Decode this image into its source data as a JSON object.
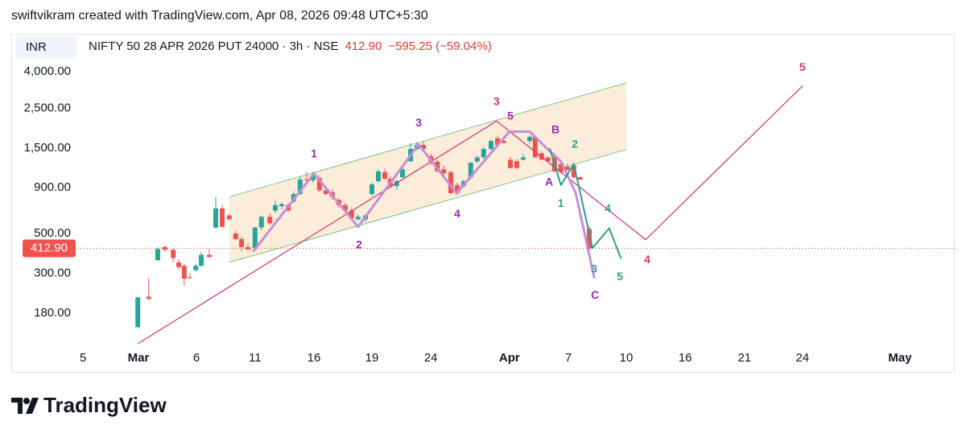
{
  "credit": "swiftvikram created with TradingView.com, Apr 08, 2026 09:48 UTC+5:30",
  "brand": "TradingView",
  "chart_data": {
    "type": "candlestick",
    "currency": "INR",
    "title": "NIFTY 50 28 APR 2026 PUT 24000 · 3h · NSE",
    "last_price": {
      "value": 412.9,
      "label": "412.90"
    },
    "change": "−595.25 (−59.04%)",
    "log_scale": true,
    "up_color": "#26a69a",
    "down_color": "#ef5350",
    "ylim": [
      120,
      6500
    ],
    "yticks": [
      {
        "value": 4000,
        "label": "4,000.00"
      },
      {
        "value": 2500,
        "label": "2,500.00"
      },
      {
        "value": 1500,
        "label": "1,500.00"
      },
      {
        "value": 900,
        "label": "900.00"
      },
      {
        "value": 500,
        "label": "500.00"
      },
      {
        "value": 300,
        "label": "300.00"
      },
      {
        "value": 180,
        "label": "180.00"
      }
    ],
    "xlim": [
      -9.5,
      126.75
    ],
    "xticks": [
      {
        "value": -8.6,
        "label": "5"
      },
      {
        "value": 0,
        "label": "Mar"
      },
      {
        "value": 9,
        "label": "6"
      },
      {
        "value": 18.1,
        "label": "11"
      },
      {
        "value": 27.25,
        "label": "16"
      },
      {
        "value": 36.25,
        "label": "19"
      },
      {
        "value": 45.4,
        "label": "24"
      },
      {
        "value": 57.6,
        "label": "Apr"
      },
      {
        "value": 66.75,
        "label": "7"
      },
      {
        "value": 75.75,
        "label": "10"
      },
      {
        "value": 84.9,
        "label": "16"
      },
      {
        "value": 94.1,
        "label": "21"
      },
      {
        "value": 103.1,
        "label": "24"
      },
      {
        "value": 118.25,
        "label": "May"
      }
    ],
    "candles": {
      "x": [
        -0.1,
        1.6,
        3,
        4.1,
        5.4,
        6.25,
        7.1,
        8,
        8.9,
        9.75,
        11,
        12,
        13,
        14.1,
        15.1,
        16,
        17,
        18.1,
        19.1,
        20.4,
        21.25,
        22.25,
        23.25,
        24.1,
        25.1,
        26.1,
        27.1,
        28.1,
        29.1,
        30.1,
        31.1,
        32.1,
        33.1,
        34.1,
        35.25,
        36.25,
        37.25,
        38.25,
        39.1,
        40.1,
        41,
        42.25,
        43.25,
        44.25,
        45.4,
        46.4,
        47.4,
        48.5,
        49.5,
        50.5,
        51.6,
        52.6,
        53.6,
        54.75,
        55.75,
        56.75,
        57.75,
        58.75,
        59.75,
        60.75,
        61.6,
        62.6,
        63.6,
        64.6,
        65.6,
        66.6,
        67.6,
        68.6,
        70
      ],
      "open": [
        150,
        222,
        355,
        420,
        405,
        345,
        330,
        285,
        312,
        330,
        380,
        540,
        690,
        630,
        500,
        465,
        420,
        415,
        540,
        620,
        670,
        710,
        720,
        755,
        830,
        1000,
        990,
        1020,
        870,
        850,
        770,
        720,
        670,
        600,
        600,
        830,
        980,
        1100,
        1010,
        920,
        1030,
        1265,
        1480,
        1560,
        1350,
        1260,
        1140,
        1100,
        930,
        920,
        1030,
        1260,
        1330,
        1480,
        1700,
        1640,
        1290,
        1265,
        1290,
        1640,
        1730,
        1400,
        1330,
        1330,
        1220,
        1180,
        1200,
        1030,
        530
      ],
      "high": [
        222,
        280,
        420,
        430,
        415,
        360,
        340,
        300,
        340,
        395,
        410,
        800,
        720,
        640,
        520,
        480,
        440,
        545,
        630,
        650,
        760,
        740,
        740,
        860,
        1040,
        1100,
        1110,
        1060,
        890,
        880,
        790,
        740,
        700,
        640,
        640,
        960,
        1140,
        1150,
        1040,
        1000,
        1160,
        1600,
        1620,
        1640,
        1400,
        1280,
        1200,
        1120,
        960,
        1000,
        1250,
        1360,
        1520,
        1680,
        1760,
        1690,
        1340,
        1300,
        1400,
        1770,
        1760,
        1440,
        1340,
        1400,
        1260,
        1220,
        1240,
        1050,
        545
      ],
      "low": [
        148,
        212,
        350,
        395,
        345,
        315,
        255,
        280,
        305,
        325,
        365,
        530,
        540,
        590,
        460,
        400,
        400,
        405,
        520,
        560,
        650,
        680,
        660,
        740,
        820,
        970,
        960,
        850,
        820,
        770,
        700,
        660,
        600,
        590,
        580,
        810,
        960,
        1000,
        900,
        880,
        1020,
        1250,
        1450,
        1450,
        1200,
        1100,
        1060,
        830,
        820,
        900,
        1000,
        1240,
        1300,
        1450,
        1550,
        1580,
        1150,
        1140,
        1280,
        1580,
        1320,
        1280,
        1240,
        1100,
        1080,
        1120,
        1010,
        990,
        400
      ],
      "close": [
        220,
        216,
        410,
        405,
        365,
        325,
        280,
        282,
        330,
        380,
        370,
        690,
        545,
        600,
        465,
        420,
        408,
        540,
        620,
        570,
        720,
        730,
        670,
        830,
        1000,
        990,
        1050,
        870,
        830,
        800,
        720,
        670,
        610,
        620,
        630,
        940,
        1110,
        1010,
        920,
        980,
        1140,
        1480,
        1560,
        1480,
        1260,
        1110,
        1085,
        840,
        840,
        980,
        1240,
        1330,
        1480,
        1640,
        1560,
        1600,
        1160,
        1160,
        1330,
        1730,
        1330,
        1290,
        1270,
        1110,
        1100,
        1130,
        1030,
        1000,
        412.9
      ]
    },
    "channel": {
      "color": "#f5b96b",
      "upper": {
        "x": [
          14.1,
          75.75
        ],
        "y": [
          800,
          3460
        ]
      },
      "lower": {
        "x": [
          14.1,
          75.75
        ],
        "y": [
          345,
          1470
        ]
      }
    },
    "lines": [
      {
        "color": "#d6336c",
        "width": 1.2,
        "x": [
          0,
          55.6,
          78.75,
          103.1
        ],
        "y": [
          122,
          2120,
          462,
          3320
        ]
      },
      {
        "color": "#c58fd6",
        "width": 3,
        "x": [
          17.9,
          27.25,
          34.1,
          43.5,
          49.4,
          57.6,
          60.75,
          63.5,
          65.6,
          67.9,
          70.75
        ],
        "y": [
          400,
          1080,
          545,
          1570,
          840,
          1850,
          1850,
          1480,
          1265,
          840,
          285
        ]
      },
      {
        "color": "#2a9d8f",
        "width": 2,
        "x": [
          63.9,
          65.6,
          67.6,
          70.5,
          73.1,
          74.9
        ],
        "y": [
          1480,
          930,
          1220,
          415,
          535,
          365
        ]
      }
    ],
    "annotations": [
      {
        "text": "1",
        "x": 27.25,
        "y": 1380,
        "color": "#9c27b0"
      },
      {
        "text": "2",
        "x": 34.25,
        "y": 430,
        "color": "#9c27b0"
      },
      {
        "text": "3",
        "x": 43.5,
        "y": 2060,
        "color": "#9c27b0"
      },
      {
        "text": "4",
        "x": 49.5,
        "y": 640,
        "color": "#9c27b0"
      },
      {
        "text": "5",
        "x": 57.75,
        "y": 2240,
        "color": "#9c27b0"
      },
      {
        "text": "B",
        "x": 64.75,
        "y": 1880,
        "color": "#9c27b0"
      },
      {
        "text": "A",
        "x": 63.75,
        "y": 960,
        "color": "#9c27b0"
      },
      {
        "text": "C",
        "x": 70.9,
        "y": 225,
        "color": "#9c27b0"
      },
      {
        "text": "3",
        "x": 55.6,
        "y": 2700,
        "color": "#d6336c"
      },
      {
        "text": "4",
        "x": 79,
        "y": 355,
        "color": "#d6336c"
      },
      {
        "text": "5",
        "x": 103.1,
        "y": 4200,
        "color": "#d6336c"
      },
      {
        "text": "1",
        "x": 65.6,
        "y": 730,
        "color": "#2a9d8f"
      },
      {
        "text": "2",
        "x": 67.75,
        "y": 1560,
        "color": "#2a9d8f"
      },
      {
        "text": "3",
        "x": 70.75,
        "y": 315,
        "color": "#2a9d8f"
      },
      {
        "text": "4",
        "x": 72.9,
        "y": 685,
        "color": "#2a9d8f"
      },
      {
        "text": "5",
        "x": 74.75,
        "y": 285,
        "color": "#2a9d8f"
      }
    ]
  }
}
